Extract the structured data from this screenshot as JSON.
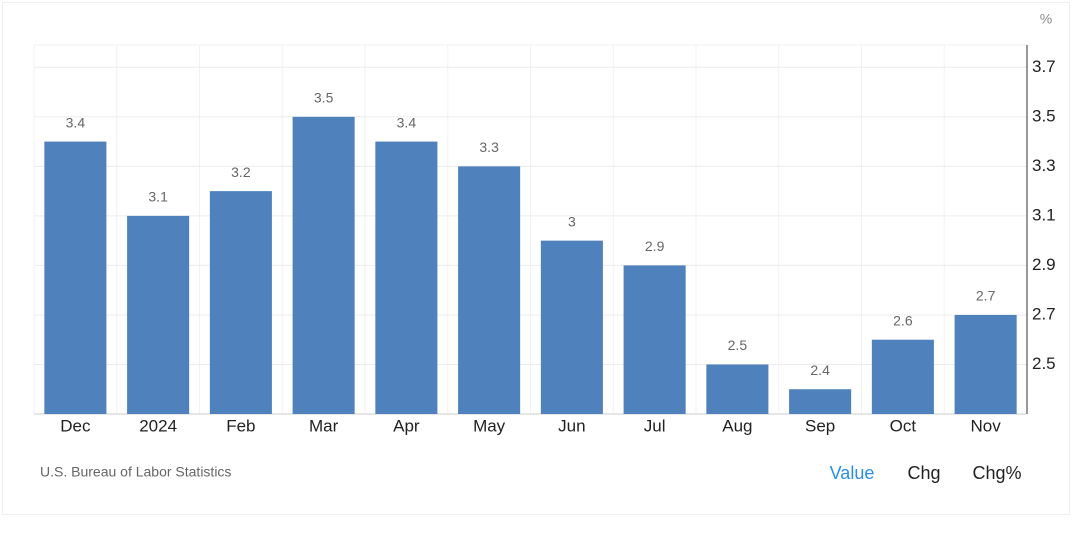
{
  "chart_data": {
    "type": "bar",
    "y_unit": "%",
    "categories": [
      "Dec",
      "2024",
      "Feb",
      "Mar",
      "Apr",
      "May",
      "Jun",
      "Jul",
      "Aug",
      "Sep",
      "Oct",
      "Nov"
    ],
    "values": [
      3.4,
      3.1,
      3.2,
      3.5,
      3.4,
      3.3,
      3,
      2.9,
      2.5,
      2.4,
      2.6,
      2.7
    ],
    "color": "#4f81bd",
    "ylim": [
      2.3,
      3.79
    ],
    "yticks": [
      2.5,
      2.7,
      2.9,
      3.1,
      3.3,
      3.5,
      3.7
    ],
    "grid": true,
    "source": "U.S. Bureau of Labor Statistics",
    "buttons": [
      "Value",
      "Chg",
      "Chg%"
    ]
  }
}
